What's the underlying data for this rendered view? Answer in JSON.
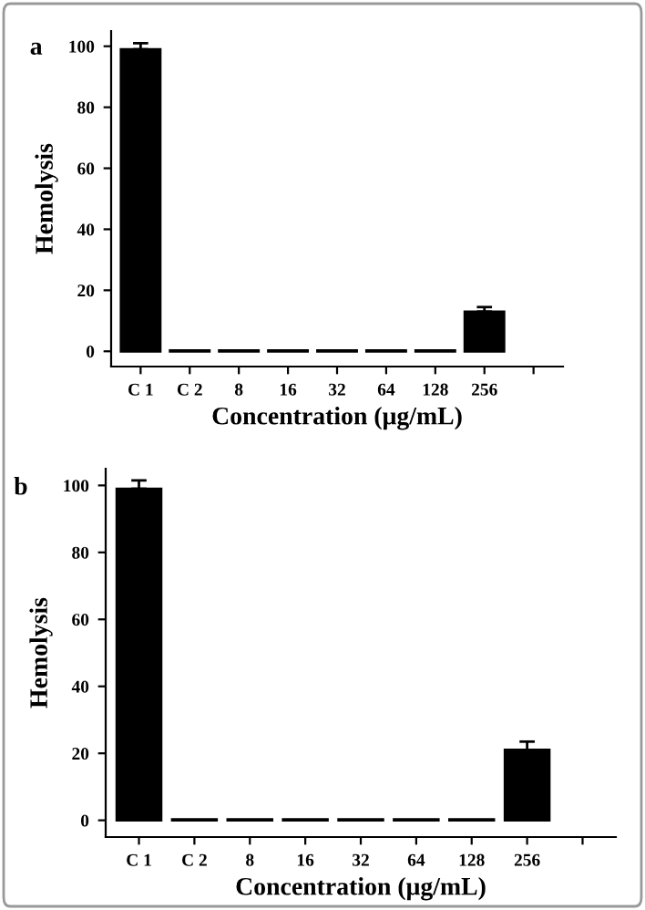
{
  "chart_data": [
    {
      "type": "bar",
      "title": "a",
      "xlabel": "Concentration (μg/mL)",
      "ylabel": "Hemolysis",
      "categories": [
        "C 1",
        "C 2",
        "8",
        "16",
        "32",
        "64",
        "128",
        "256",
        null
      ],
      "values": [
        99,
        0.3,
        0.3,
        0.3,
        0.3,
        0.3,
        0.3,
        13,
        null
      ],
      "errors": [
        2,
        null,
        null,
        null,
        null,
        null,
        null,
        1.5,
        null
      ],
      "color": "#000000",
      "ylim": [
        -5,
        105
      ],
      "yticks": [
        0,
        20,
        40,
        60,
        80,
        100
      ],
      "grid": false
    },
    {
      "type": "bar",
      "title": "b",
      "xlabel": "Concentration (μg/mL)",
      "ylabel": "Hemolysis",
      "categories": [
        "C 1",
        "C 2",
        "8",
        "16",
        "32",
        "64",
        "128",
        "256",
        null
      ],
      "values": [
        99,
        0.3,
        0.3,
        0.3,
        0.3,
        0.3,
        0.3,
        21,
        null
      ],
      "errors": [
        2.5,
        null,
        null,
        null,
        null,
        null,
        null,
        2.5,
        null
      ],
      "color": "#000000",
      "ylim": [
        -5,
        105
      ],
      "yticks": [
        0,
        20,
        40,
        60,
        80,
        100
      ],
      "grid": false
    }
  ]
}
